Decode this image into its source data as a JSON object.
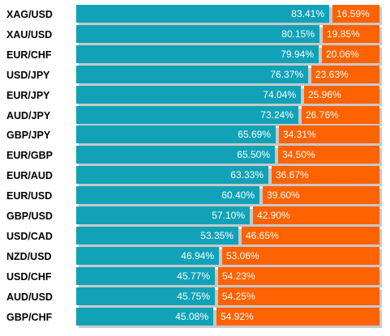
{
  "chart_data": {
    "type": "bar",
    "stacked": true,
    "orientation": "horizontal",
    "percent_suffix": "%",
    "colors": {
      "long": "#11a2b8",
      "short": "#ff6200",
      "shadow": "#c8c8c8"
    },
    "categories": [
      "XAG/USD",
      "XAU/USD",
      "EUR/CHF",
      "USD/JPY",
      "EUR/JPY",
      "AUD/JPY",
      "GBP/JPY",
      "EUR/GBP",
      "EUR/AUD",
      "EUR/USD",
      "GBP/USD",
      "USD/CAD",
      "NZD/USD",
      "USD/CHF",
      "AUD/USD",
      "GBP/CHF"
    ],
    "series": [
      {
        "values": [
          83.41,
          80.15,
          79.94,
          76.37,
          74.04,
          73.24,
          65.69,
          65.5,
          63.33,
          60.4,
          57.1,
          53.35,
          46.94,
          45.77,
          45.75,
          45.08
        ]
      },
      {
        "values": [
          16.59,
          19.85,
          20.06,
          23.63,
          25.96,
          26.76,
          34.31,
          34.5,
          36.67,
          39.6,
          42.9,
          46.65,
          53.06,
          54.23,
          54.25,
          54.92
        ]
      }
    ],
    "labels": {
      "long": [
        "83.41%",
        "80.15%",
        "79.94%",
        "76.37%",
        "74.04%",
        "73.24%",
        "65.69%",
        "65.50%",
        "63.33%",
        "60.40%",
        "57.10%",
        "53.35%",
        "46.94%",
        "45.77%",
        "45.75%",
        "45.08%"
      ],
      "short": [
        "16.59%",
        "19.85%",
        "20.06%",
        "23.63%",
        "25.96%",
        "26.76%",
        "34.31%",
        "34.50%",
        "36.67%",
        "39.60%",
        "42.90%",
        "46.65%",
        "53.06%",
        "54.23%",
        "54.25%",
        "54.92%"
      ]
    }
  }
}
